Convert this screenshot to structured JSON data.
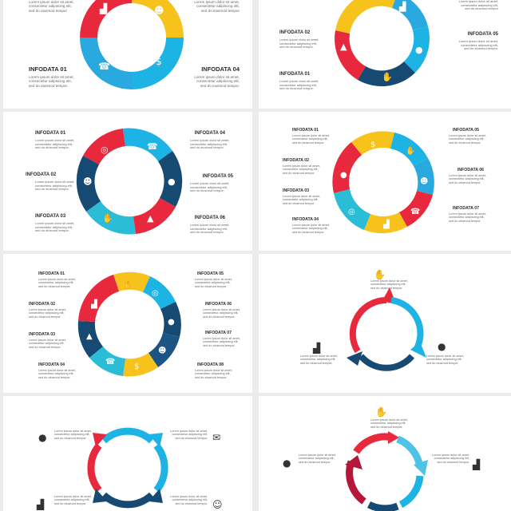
{
  "colors": {
    "red": "#e8283c",
    "yellow": "#f7c21b",
    "cyan": "#1db3e5",
    "navy": "#174a73",
    "crimson": "#b5173b",
    "lightblue": "#4fc3e6"
  },
  "body_text": "Lorem ipsum dolor sit amet, consectetur adipiscing elit, sed do eiusmod tempor.",
  "body_short": "Lorem ipsum dolor sit amet, consectetur adipiscing elit, sed do eiusmod tempor",
  "panels": [
    {
      "labels": {
        "l1": "INFODATA 01",
        "r4": "INFODATA 04"
      },
      "icons": [
        "chart-icon",
        "team-icon",
        "phone-icon",
        "money-hand-icon"
      ]
    },
    {
      "labels": {
        "l2": "INFODATA 02",
        "l1": "INFODATA 01",
        "r5": "INFODATA 05"
      },
      "icons": [
        "rocket-icon",
        "chart-icon",
        "idea-bulb-icon",
        "handshake-icon"
      ]
    },
    {
      "labels": {
        "l1": "INFODATA 01",
        "l2": "INFODATA 02",
        "l3": "INFODATA 03",
        "r4": "INFODATA 04",
        "r5": "INFODATA 05",
        "r6": "INFODATA 06"
      },
      "icons": [
        "target-icon",
        "phone-icon",
        "team-icon",
        "idea-bulb-icon",
        "rocket-icon",
        "handshake-icon"
      ]
    },
    {
      "labels": {
        "l1": "INFODATA 01",
        "l2": "INFODATA 02",
        "l3": "INFODATA 03",
        "l4": "INFODATA 04",
        "r5": "INFODATA 05",
        "r6": "INFODATA 06",
        "r7": "INFODATA 07"
      },
      "icons": [
        "money-hand-icon",
        "handshake-icon",
        "team-icon",
        "phone-icon",
        "chart-icon",
        "target-icon",
        "idea-bulb-icon"
      ]
    },
    {
      "labels": {
        "l1": "INFODATA 01",
        "l2": "INFODATA 02",
        "l3": "INFODATA 03",
        "l4": "INFODATA 04",
        "r5": "INFODATA 05",
        "r6": "INFODATA 06",
        "r7": "INFODATA 07",
        "r8": "INFODATA 08"
      },
      "icons": [
        "handshake-icon",
        "target-icon",
        "chart-icon",
        "idea-bulb-icon",
        "rocket-icon",
        "team-icon",
        "phone-icon",
        "money-hand-icon"
      ]
    },
    {
      "icons": [
        "handshake-icon",
        "chart-icon",
        "idea-bulb-icon"
      ]
    },
    {
      "icons": [
        "idea-bulb-icon",
        "mail-icon",
        "chart-icon",
        "brain-icon"
      ]
    },
    {
      "icons": [
        "handshake-icon",
        "idea-bulb-icon",
        "chart-icon"
      ]
    }
  ]
}
